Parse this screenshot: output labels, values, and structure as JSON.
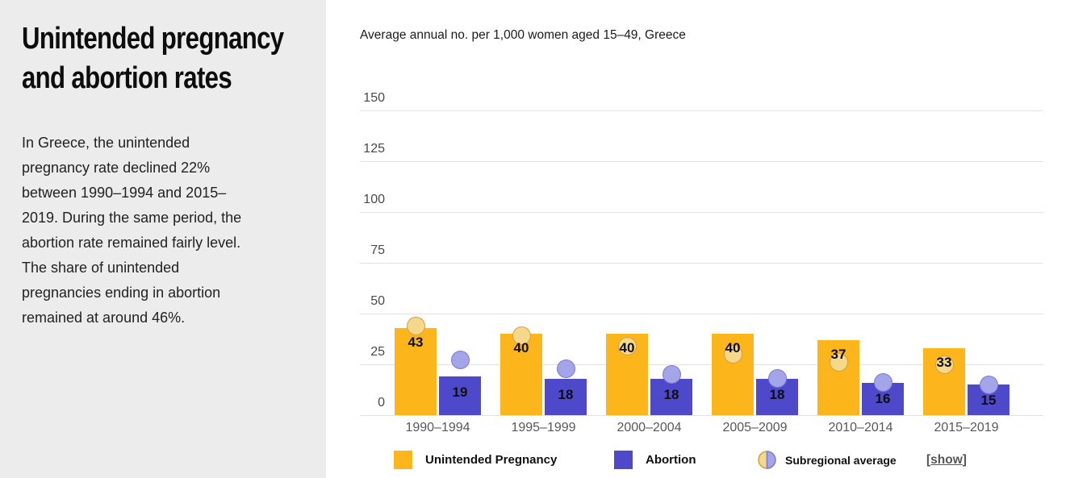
{
  "sidebar": {
    "title": "Unintended pregnancy\nand abortion rates",
    "description": "In Greece, the unintended\npregnancy rate declined 22%\nbetween 1990–1994 and 2015–\n2019. During the same period, the\nabortion rate remained fairly level.\nThe share of unintended\npregnancies ending in abortion\nremained at around 46%."
  },
  "chart_data": {
    "type": "bar",
    "title": "Average annual no. per 1,000 women aged 15–49, Greece",
    "categories": [
      "1990–1994",
      "1995–1999",
      "2000–2004",
      "2005–2009",
      "2010–2014",
      "2015–2019"
    ],
    "series": [
      {
        "name": "Unintended Pregnancy",
        "color": "#FCB61B",
        "values": [
          43,
          40,
          40,
          40,
          37,
          33
        ]
      },
      {
        "name": "Abortion",
        "color": "#4E49CA",
        "values": [
          19,
          18,
          18,
          18,
          16,
          15
        ]
      }
    ],
    "subregional_average": {
      "label": "Subregional average",
      "series": [
        {
          "follows": "Unintended Pregnancy",
          "fill": "#F6D88D",
          "border": "#D89E3E",
          "values": [
            44,
            39,
            34,
            30,
            26,
            25
          ]
        },
        {
          "follows": "Abortion",
          "fill": "#A4A4E8",
          "border": "#7B79D9",
          "values": [
            27,
            23,
            20,
            18,
            16,
            15
          ]
        }
      ]
    },
    "yticks": [
      0,
      25,
      50,
      75,
      100,
      125,
      150
    ],
    "ylim": [
      0,
      150
    ],
    "grid": true,
    "legend_position": "bottom"
  },
  "legend": {
    "show_prefix": "[",
    "show_word": "show",
    "show_suffix": "]"
  }
}
